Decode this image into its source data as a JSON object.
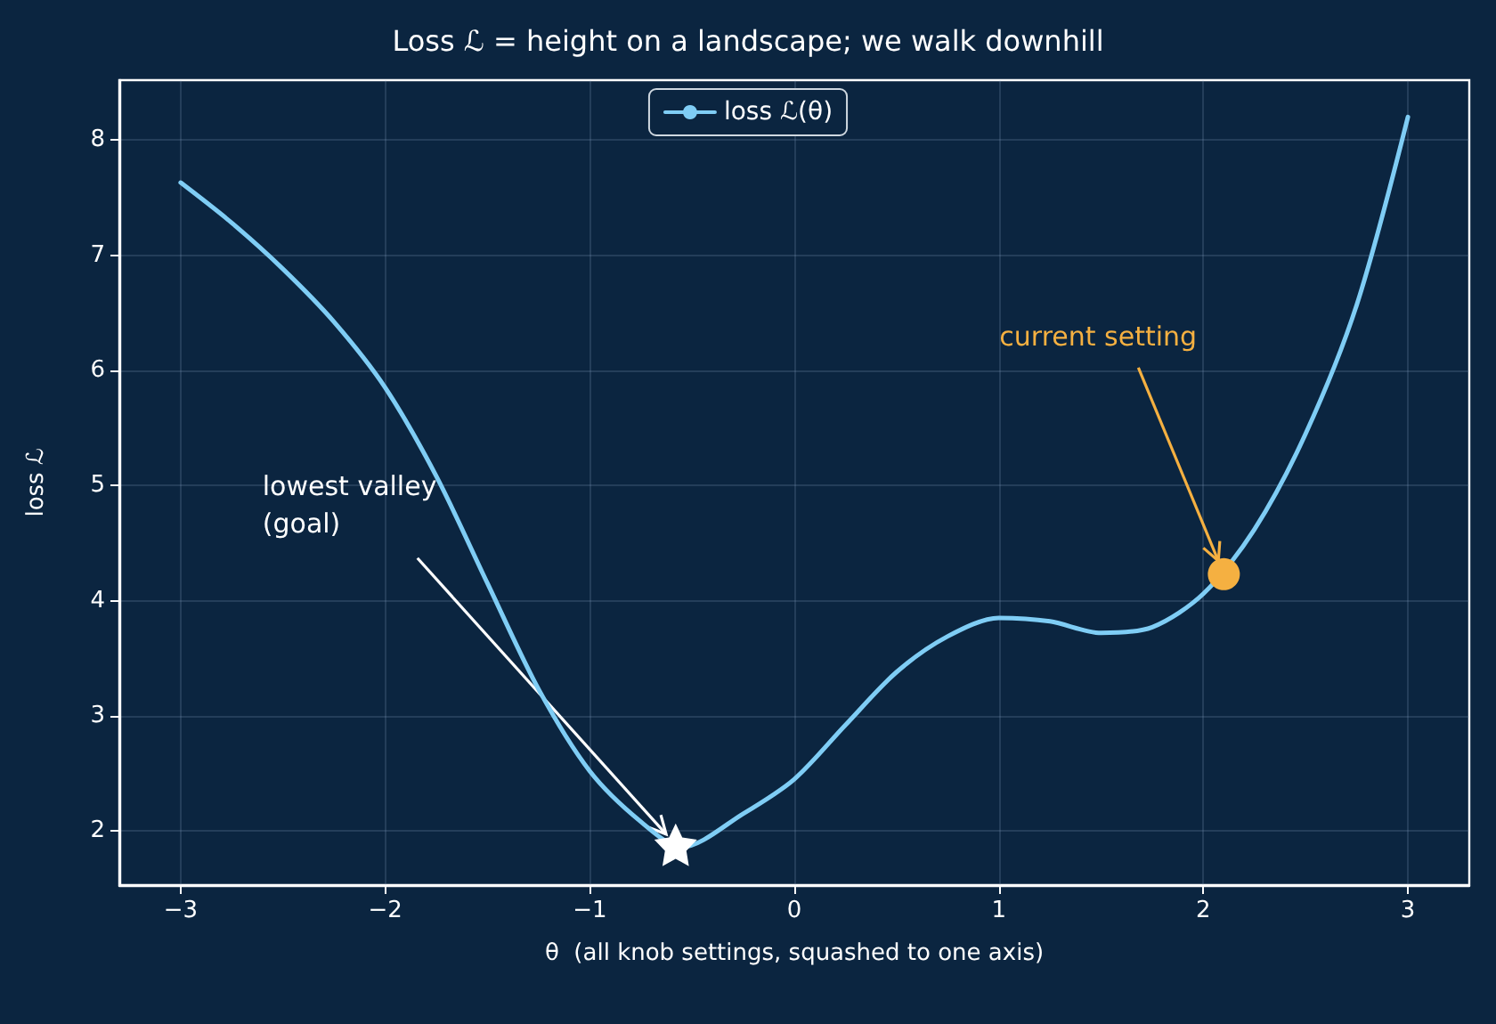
{
  "chart_data": {
    "type": "line",
    "title": "Loss ℒ = height on a landscape; we walk downhill",
    "xlabel": "θ  (all knob settings, squashed to one axis)",
    "ylabel": "loss ℒ",
    "series": [
      {
        "name": "loss ℒ(θ)",
        "color": "#7fcdf5",
        "marker": "none",
        "x": [
          -3,
          -2.75,
          -2.5,
          -2.25,
          -2,
          -1.75,
          -1.5,
          -1.25,
          -1,
          -0.75,
          -0.55,
          -0.25,
          0,
          0.25,
          0.5,
          0.75,
          1,
          1.25,
          1.5,
          1.75,
          2,
          2.25,
          2.5,
          2.75,
          3
        ],
        "values": [
          7.63,
          7.28,
          6.88,
          6.42,
          5.85,
          5.08,
          4.15,
          3.23,
          2.52,
          2.08,
          1.86,
          2.15,
          2.45,
          2.92,
          3.38,
          3.69,
          3.85,
          3.82,
          3.72,
          3.77,
          4.06,
          4.62,
          5.45,
          6.57,
          8.2
        ]
      },
      {
        "type": "scatter",
        "color": "#ffffff",
        "marker": "star",
        "x": [
          -0.58
        ],
        "values": [
          1.88
        ]
      },
      {
        "type": "scatter",
        "color": "#f5b041",
        "marker": "circle",
        "x": [
          2.1
        ],
        "values": [
          4.23
        ]
      }
    ],
    "annotations": [
      {
        "text": "lowest valley\n(goal)",
        "x": -0.58,
        "y": 1.88
      },
      {
        "text": "current setting",
        "x": 2.1,
        "y": 4.23
      }
    ],
    "xlim": [
      -3.3,
      3.3
    ],
    "ylim": [
      1.53,
      8.52
    ],
    "xticks": [
      -3,
      -2,
      -1,
      0,
      1,
      2,
      3
    ],
    "yticks": [
      2,
      3,
      4,
      5,
      6,
      7,
      8
    ],
    "grid": true,
    "legend": "top",
    "line_style": "solid"
  }
}
